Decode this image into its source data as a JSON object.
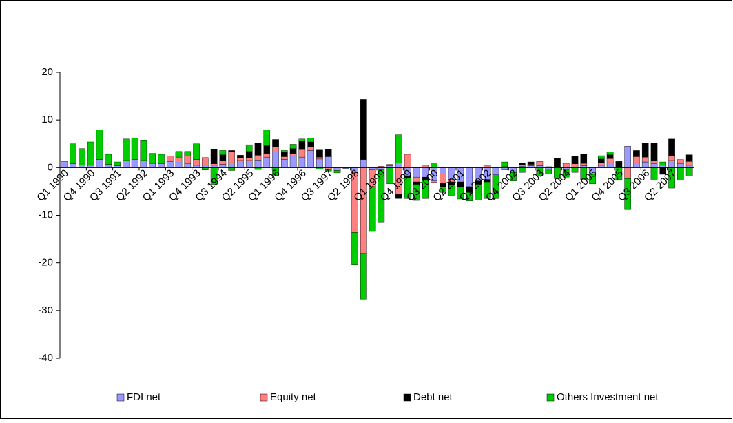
{
  "chart_data": {
    "type": "stacked-bar",
    "categories": [
      "Q1 1990",
      null,
      null,
      "Q4 1990",
      null,
      null,
      "Q3 1991",
      null,
      null,
      "Q2 1992",
      null,
      null,
      "Q1 1993",
      null,
      null,
      "Q4 1993",
      null,
      null,
      "Q3 1994",
      null,
      null,
      "Q2 1995",
      null,
      null,
      "Q1 1996",
      null,
      null,
      "Q4 1996",
      null,
      null,
      "Q3 1997",
      null,
      null,
      "Q2 1998",
      null,
      null,
      "Q1 1999",
      null,
      null,
      "Q4 1999",
      null,
      null,
      "Q3 2000",
      null,
      null,
      "Q2 2001",
      null,
      null,
      "Q1 2002",
      null,
      null,
      "Q4 2002",
      null,
      null,
      "Q3 2003",
      null,
      null,
      "Q2 2004",
      null,
      null,
      "Q1 2005",
      null,
      null,
      "Q4 2005",
      null,
      null,
      "Q3 2006",
      null,
      null,
      "Q2 2007",
      null,
      null
    ],
    "series": [
      {
        "name": "FDI net",
        "color": "#9999ff",
        "values": [
          1.3,
          0.8,
          0.6,
          0.5,
          1.7,
          0.7,
          0.4,
          1.5,
          1.7,
          1.5,
          0.9,
          0.8,
          1.3,
          1.4,
          0.9,
          0.5,
          0.6,
          0.5,
          0.7,
          1.0,
          1.5,
          1.5,
          1.6,
          2.2,
          3.3,
          1.7,
          2.4,
          2.2,
          3.6,
          1.8,
          2.3,
          -0.3,
          -0.2,
          -1.0,
          1.7,
          -0.5,
          -0.4,
          0.4,
          1.0,
          -1.7,
          -2.0,
          -2.0,
          -2.8,
          -1.3,
          -2.5,
          -3.0,
          -4.0,
          -2.8,
          -2.5,
          -1.5,
          -0.5,
          -1.0,
          0.3,
          0.4,
          0.4,
          -0.3,
          0,
          -0.5,
          0,
          0.4,
          -1.4,
          0.5,
          1.0,
          0.2,
          4.5,
          1.0,
          1.2,
          0.8,
          0.5,
          1.5,
          0.8,
          0.5
        ]
      },
      {
        "name": "Equity net",
        "color": "#ff8080",
        "values": [
          0,
          0,
          0,
          0,
          0,
          0,
          0,
          0,
          0,
          0,
          0,
          0,
          1.1,
          0.8,
          1.5,
          1.2,
          1.5,
          0.3,
          0.7,
          2.4,
          0.5,
          0.6,
          1.0,
          0.8,
          1.0,
          0.6,
          0.6,
          1.6,
          0.8,
          0.4,
          -0.4,
          -0.3,
          0,
          -12.6,
          -18,
          -3.5,
          0.3,
          0.3,
          -5.6,
          2.8,
          -1.0,
          0.5,
          -0.3,
          -2.0,
          -0.5,
          0,
          0,
          0,
          0.4,
          0,
          0.2,
          0,
          0.3,
          0.3,
          0.9,
          0,
          0,
          0.9,
          0.8,
          0.5,
          0,
          0.5,
          0.9,
          0,
          -2.3,
          1.3,
          1.0,
          0.6,
          0,
          1.0,
          0.9,
          0.8
        ]
      },
      {
        "name": "Debt net",
        "color": "#000000",
        "values": [
          0,
          0,
          0,
          0,
          0,
          0,
          0,
          0,
          0,
          0,
          0,
          0,
          0,
          0,
          0,
          0,
          0,
          3.0,
          1.3,
          0.2,
          0.6,
          1.3,
          2.6,
          1.6,
          1.6,
          0.9,
          1.0,
          1.8,
          1.0,
          1.5,
          1.5,
          0,
          0,
          0,
          12.6,
          0,
          0,
          0,
          -0.9,
          -0.5,
          -0.5,
          -0.6,
          0,
          -0.7,
          -0.7,
          -1.0,
          -1.2,
          -0.7,
          -0.5,
          0,
          0,
          0,
          0.4,
          0.5,
          0,
          0.2,
          2.0,
          0,
          1.6,
          1.9,
          0,
          0.8,
          0.8,
          1.1,
          0,
          1.3,
          3.0,
          3.8,
          -1.4,
          3.5,
          0,
          1.4
        ]
      },
      {
        "name": "Others Investment net",
        "color": "#00cc00",
        "values": [
          0,
          4.2,
          3.4,
          4.9,
          6.2,
          2.1,
          0.8,
          4.5,
          4.5,
          4.3,
          2.1,
          2.0,
          0,
          1.2,
          1.0,
          3.3,
          -0.5,
          -3.5,
          0.9,
          -0.6,
          0,
          1.4,
          -0.4,
          3.3,
          -1.6,
          0.4,
          0.9,
          0.4,
          0.8,
          -0.3,
          -0.3,
          -0.5,
          0,
          -6.7,
          -9.6,
          -9.4,
          -11.0,
          -3.4,
          5.9,
          -4.3,
          -3.4,
          -3.9,
          1.0,
          -1.2,
          -2.2,
          -2.6,
          -1.8,
          -3.3,
          -3.5,
          -5.0,
          1.0,
          -1.8,
          -1.0,
          0,
          -1.8,
          -1.0,
          -2.3,
          -1.5,
          -1.0,
          -2.6,
          -2.0,
          0.7,
          0.6,
          -2.5,
          -6.5,
          0,
          0,
          -2.6,
          0.7,
          -4.3,
          -2.6,
          -1.8
        ]
      }
    ],
    "ylim": [
      -40,
      20
    ],
    "yticks": [
      -40,
      -30,
      -20,
      -10,
      0,
      10,
      20
    ],
    "legend": "bottom"
  }
}
